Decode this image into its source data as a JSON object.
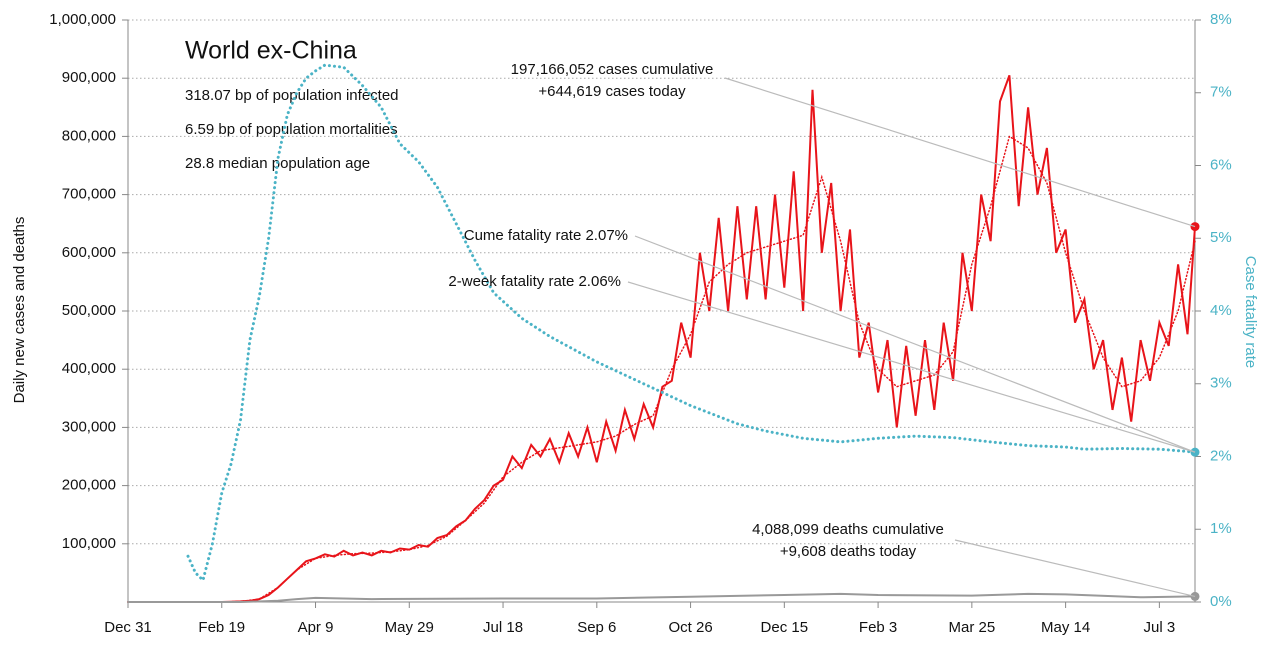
{
  "chart_data": {
    "type": "line",
    "title": "World ex-China",
    "subtitle_lines": [
      "318.07 bp of population infected",
      "6.59 bp of population mortalities",
      "28.8 median population age"
    ],
    "ylabel": "Daily new cases and deaths",
    "y2label": "Case fatality rate",
    "xlim": [
      0,
      569
    ],
    "xticks": [
      {
        "value": 0,
        "label": "Dec 31"
      },
      {
        "value": 50,
        "label": "Feb 19"
      },
      {
        "value": 100,
        "label": "Apr 9"
      },
      {
        "value": 150,
        "label": "May 29"
      },
      {
        "value": 200,
        "label": "Jul 18"
      },
      {
        "value": 250,
        "label": "Sep 6"
      },
      {
        "value": 300,
        "label": "Oct 26"
      },
      {
        "value": 350,
        "label": "Dec 15"
      },
      {
        "value": 400,
        "label": "Feb 3"
      },
      {
        "value": 450,
        "label": "Mar 25"
      },
      {
        "value": 500,
        "label": "May 14"
      },
      {
        "value": 550,
        "label": "Jul 3"
      }
    ],
    "ylim": [
      0,
      1000000
    ],
    "yticks": [
      {
        "value": 100000,
        "label": "100,000"
      },
      {
        "value": 200000,
        "label": "200,000"
      },
      {
        "value": 300000,
        "label": "300,000"
      },
      {
        "value": 400000,
        "label": "400,000"
      },
      {
        "value": 500000,
        "label": "500,000"
      },
      {
        "value": 600000,
        "label": "600,000"
      },
      {
        "value": 700000,
        "label": "700,000"
      },
      {
        "value": 800000,
        "label": "800,000"
      },
      {
        "value": 900000,
        "label": "900,000"
      },
      {
        "value": 1000000,
        "label": "1,000,000"
      }
    ],
    "y2lim": [
      0,
      8
    ],
    "y2ticks": [
      {
        "value": 0,
        "label": "0%"
      },
      {
        "value": 1,
        "label": "1%"
      },
      {
        "value": 2,
        "label": "2%"
      },
      {
        "value": 3,
        "label": "3%"
      },
      {
        "value": 4,
        "label": "4%"
      },
      {
        "value": 5,
        "label": "5%"
      },
      {
        "value": 6,
        "label": "6%"
      },
      {
        "value": 7,
        "label": "7%"
      },
      {
        "value": 8,
        "label": "8%"
      }
    ],
    "grid": true,
    "series": [
      {
        "color": "#e8141a",
        "style": "solid",
        "axis": "y",
        "x": [
          0,
          50,
          55,
          60,
          65,
          70,
          75,
          80,
          85,
          90,
          95,
          100,
          105,
          110,
          115,
          120,
          125,
          130,
          135,
          140,
          145,
          150,
          155,
          160,
          165,
          170,
          175,
          180,
          185,
          190,
          195,
          200,
          205,
          210,
          215,
          220,
          225,
          230,
          235,
          240,
          245,
          250,
          255,
          260,
          265,
          270,
          275,
          280,
          285,
          290,
          295,
          300,
          305,
          310,
          315,
          320,
          325,
          330,
          335,
          340,
          345,
          350,
          355,
          360,
          365,
          370,
          375,
          380,
          385,
          390,
          395,
          400,
          405,
          410,
          415,
          420,
          425,
          430,
          435,
          440,
          445,
          450,
          455,
          460,
          465,
          470,
          475,
          480,
          485,
          490,
          495,
          500,
          505,
          510,
          515,
          520,
          525,
          530,
          535,
          540,
          545,
          550,
          555,
          560,
          565,
          569
        ],
        "values": [
          0,
          0,
          500,
          1000,
          2000,
          5000,
          12000,
          25000,
          40000,
          55000,
          70000,
          75000,
          82000,
          78000,
          88000,
          80000,
          85000,
          80000,
          88000,
          85000,
          92000,
          90000,
          98000,
          95000,
          110000,
          115000,
          130000,
          140000,
          160000,
          175000,
          200000,
          210000,
          250000,
          230000,
          270000,
          250000,
          280000,
          240000,
          290000,
          250000,
          300000,
          240000,
          310000,
          260000,
          330000,
          280000,
          340000,
          300000,
          370000,
          380000,
          480000,
          420000,
          600000,
          500000,
          660000,
          500000,
          680000,
          520000,
          680000,
          520000,
          700000,
          540000,
          740000,
          500000,
          880000,
          600000,
          720000,
          500000,
          640000,
          420000,
          480000,
          360000,
          450000,
          300000,
          440000,
          320000,
          450000,
          330000,
          480000,
          380000,
          600000,
          500000,
          700000,
          620000,
          860000,
          905000,
          680000,
          850000,
          700000,
          780000,
          600000,
          640000,
          480000,
          520000,
          400000,
          450000,
          330000,
          420000,
          310000,
          450000,
          380000,
          480000,
          440000,
          580000,
          460000,
          645000
        ]
      },
      {
        "color": "#e8141a",
        "style": "dotted",
        "axis": "y",
        "x": [
          50,
          60,
          70,
          80,
          90,
          100,
          110,
          120,
          130,
          140,
          150,
          160,
          170,
          180,
          190,
          200,
          210,
          220,
          230,
          240,
          250,
          260,
          270,
          280,
          290,
          300,
          310,
          320,
          330,
          340,
          350,
          360,
          370,
          380,
          390,
          400,
          410,
          420,
          430,
          440,
          450,
          460,
          470,
          480,
          490,
          500,
          510,
          520,
          530,
          540,
          550,
          560,
          569
        ],
        "values": [
          0,
          1000,
          5000,
          25000,
          55000,
          75000,
          80000,
          83000,
          84000,
          86000,
          90000,
          97000,
          113000,
          140000,
          170000,
          215000,
          240000,
          260000,
          265000,
          270000,
          275000,
          285000,
          305000,
          320000,
          400000,
          460000,
          550000,
          580000,
          600000,
          610000,
          620000,
          630000,
          730000,
          620000,
          480000,
          400000,
          370000,
          380000,
          390000,
          430000,
          580000,
          680000,
          800000,
          780000,
          720000,
          600000,
          500000,
          420000,
          370000,
          380000,
          420000,
          500000,
          620000
        ]
      },
      {
        "color": "#4bb3c6",
        "style": "dotted",
        "axis": "y2",
        "x": [
          32,
          36,
          40,
          45,
          50,
          55,
          60,
          65,
          70,
          75,
          80,
          85,
          90,
          95,
          100,
          105,
          115,
          125,
          135,
          145,
          155,
          165,
          175,
          185,
          195,
          210,
          225,
          250,
          275,
          300,
          325,
          340,
          360,
          380,
          400,
          420,
          440,
          460,
          480,
          500,
          510,
          530,
          550,
          569
        ],
        "values": [
          0.63,
          0.4,
          0.3,
          0.8,
          1.5,
          1.9,
          2.5,
          3.6,
          4.2,
          5.0,
          6.1,
          6.7,
          7.0,
          7.2,
          7.3,
          7.38,
          7.35,
          7.1,
          6.8,
          6.3,
          6.05,
          5.7,
          5.2,
          4.7,
          4.25,
          3.9,
          3.65,
          3.3,
          3.0,
          2.7,
          2.45,
          2.35,
          2.25,
          2.2,
          2.25,
          2.28,
          2.26,
          2.2,
          2.15,
          2.13,
          2.1,
          2.11,
          2.1,
          2.06
        ]
      },
      {
        "color": "#999999",
        "style": "solid",
        "axis": "y",
        "x": [
          0,
          60,
          80,
          90,
          100,
          130,
          200,
          250,
          300,
          350,
          380,
          400,
          450,
          480,
          500,
          540,
          569
        ],
        "values": [
          0,
          0,
          2000,
          5000,
          7000,
          5000,
          6000,
          6000,
          9000,
          12000,
          14000,
          12000,
          11000,
          14000,
          13000,
          8000,
          9608
        ]
      }
    ],
    "annotations": [
      {
        "lines": [
          "197,166,052 cases cumulative",
          "+644,619 cases today"
        ]
      },
      {
        "lines": [
          "Cume fatality rate 2.07%"
        ]
      },
      {
        "lines": [
          "2-week fatality rate 2.06%"
        ]
      },
      {
        "lines": [
          "4,088,099 deaths cumulative",
          "+9,608 deaths today"
        ]
      }
    ]
  }
}
